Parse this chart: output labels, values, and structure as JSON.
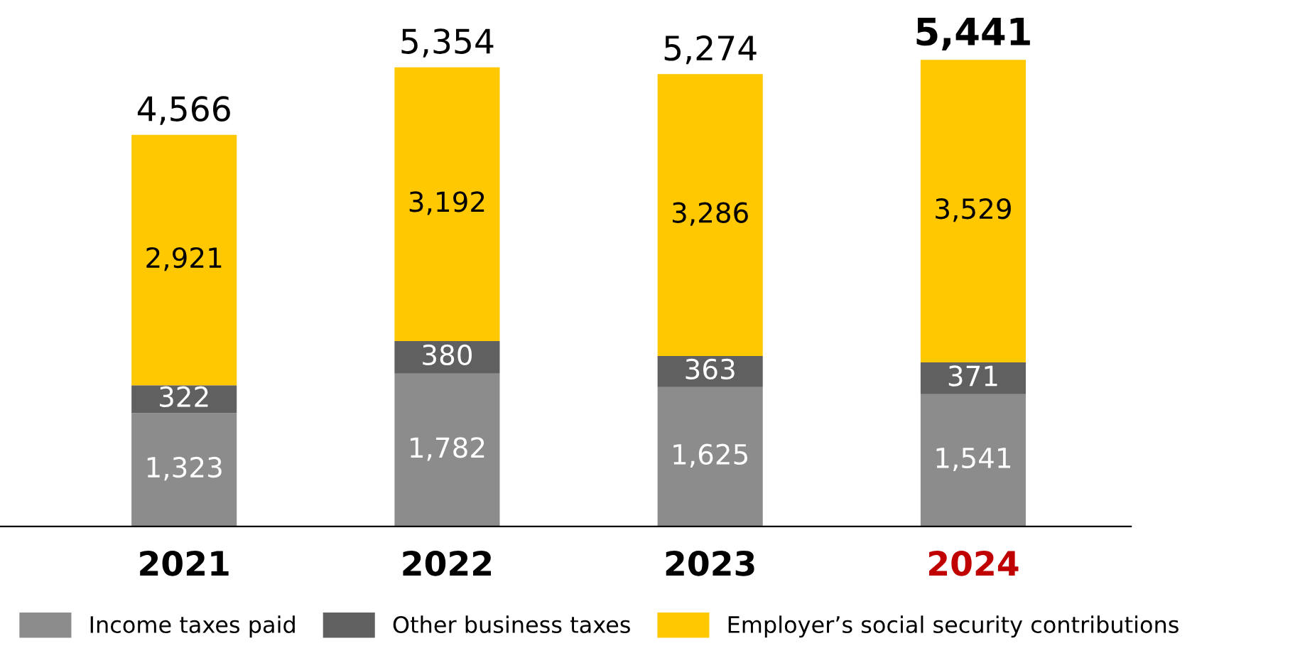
{
  "chart_data": {
    "type": "bar",
    "stacked": true,
    "legend": "bottom",
    "grid": false,
    "tick_labels": "x",
    "categories": [
      "2021",
      "2022",
      "2023",
      "2024"
    ],
    "series": [
      {
        "name": "Income taxes paid",
        "color": "#8c8c8c",
        "values": [
          1323,
          1782,
          1625,
          1541
        ],
        "value_labels": [
          "1,323",
          "1,782",
          "1,625",
          "1,541"
        ]
      },
      {
        "name": "Other business taxes",
        "color": "#606060",
        "values": [
          322,
          380,
          363,
          371
        ],
        "value_labels": [
          "322",
          "380",
          "363",
          "371"
        ]
      },
      {
        "name": "Employer’s social security contributions",
        "color": "#ffc800",
        "values": [
          2921,
          3192,
          3286,
          3529
        ],
        "value_labels": [
          "2,921",
          "3,192",
          "3,286",
          "3,529"
        ]
      }
    ],
    "totals": [
      "4,566",
      "5,354",
      "5,274",
      "5,441"
    ]
  }
}
